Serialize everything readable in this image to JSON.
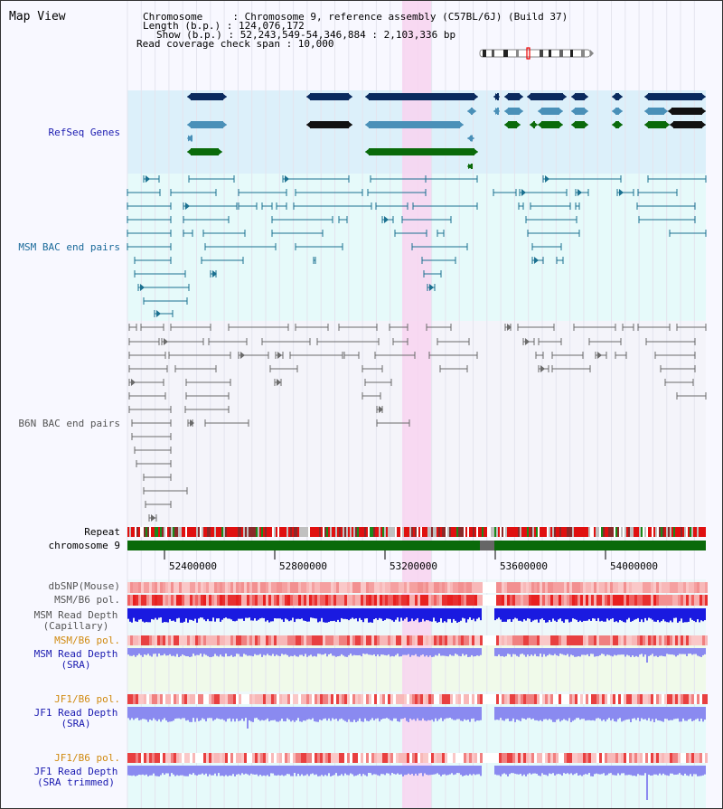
{
  "title": "Map View",
  "header": {
    "chromosome_label": "Chromosome     : Chromosome 9, reference assembly (C57BL/6J) (Build 37)",
    "length_label": "Length (b.p.) : 124,076,172",
    "show_label": "Show (b.p.) : 52,243,549-54,346,884 : 2,103,336 bp",
    "coverage_label": "Read coverage check span : 10,000"
  },
  "tracks": {
    "refseq": "RefSeq Genes",
    "msm_bac": "MSM BAC end pairs",
    "b6n_bac": "B6N BAC end pairs",
    "repeat": "Repeat",
    "chromosome": "chromosome 9",
    "dbsnp": "dbSNP(Mouse)",
    "msm_b6_pol_1": "MSM/B6 pol.",
    "msm_read_depth_cap_1": "MSM Read Depth",
    "msm_read_depth_cap_2": "(Capillary)",
    "msm_b6_pol_2": "MSM/B6 pol.",
    "msm_read_depth_sra_1": "MSM Read Depth",
    "msm_read_depth_sra_2": "(SRA)",
    "jf1_b6_pol_1": "JF1/B6 pol.",
    "jf1_read_depth_sra_1": "JF1 Read Depth",
    "jf1_read_depth_sra_2": "(SRA)",
    "jf1_b6_pol_2": "JF1/B6 pol.",
    "jf1_read_depth_trim_1": "JF1 Read Depth",
    "jf1_read_depth_trim_2": "(SRA trimmed)"
  },
  "axis": {
    "ticks": [
      "52400000",
      "52800000",
      "53200000",
      "53600000",
      "54000000"
    ]
  },
  "colors": {
    "refseq_bg": "#dcf0fa",
    "bac_bg": "#e6fafa",
    "b6n_bg": "#f4f4fa",
    "highlight": "#f8d4f0",
    "refseq_navy": "#0a2a5e",
    "refseq_teal": "#4a90b8",
    "refseq_green": "#0a6a0a",
    "msm_bac": "#1a7090",
    "b6n_bac": "#6a6a6a",
    "chrom_green": "#0a6a0a",
    "depth_blue": "#1a1ae0",
    "depth_light": "#8a8af0",
    "snp_red": "#e83030",
    "msm_label": "#1a6a9a",
    "orange_label": "#d08a10",
    "blue_label": "#1a1ab0"
  }
}
